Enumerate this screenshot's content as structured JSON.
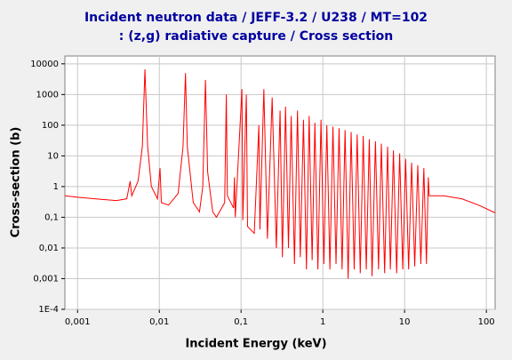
{
  "chart_data": {
    "type": "line",
    "title": "Incident neutron data / JEFF-3.2 / U238 / MT=102",
    "subtitle": ": (z,g) radiative capture / Cross section",
    "x_label": "Incident Energy (keV)",
    "y_label": "Cross-section (b)",
    "log_x": true,
    "log_y": true,
    "grid": true,
    "color": "#ff0000",
    "xlim": [
      0.0007,
      128
    ],
    "ylim": [
      0.0001,
      18000
    ],
    "xticks": [
      {
        "value": 0.001,
        "label": "0,001"
      },
      {
        "value": 0.01,
        "label": "0,01"
      },
      {
        "value": 0.1,
        "label": "0,1"
      },
      1,
      10,
      100
    ],
    "yticks": [
      {
        "value": 0.0001,
        "label": "1E-4"
      },
      {
        "value": 0.001,
        "label": "0,001"
      },
      {
        "value": 0.01,
        "label": "0,01"
      },
      {
        "value": 0.1,
        "label": "0,1"
      },
      1,
      10,
      100,
      1000,
      10000
    ],
    "x": [
      0.0007,
      0.001,
      0.002,
      0.003,
      0.004,
      0.0044,
      0.0046,
      0.0055,
      0.0062,
      0.00667,
      0.0072,
      0.008,
      0.0095,
      0.0102,
      0.0106,
      0.013,
      0.017,
      0.0195,
      0.0209,
      0.022,
      0.026,
      0.031,
      0.034,
      0.0367,
      0.039,
      0.045,
      0.05,
      0.063,
      0.066,
      0.068,
      0.081,
      0.083,
      0.085,
      0.1025,
      0.105,
      0.116,
      0.12,
      0.145,
      0.165,
      0.17,
      0.19,
      0.21,
      0.24,
      0.27,
      0.3,
      0.32,
      0.35,
      0.38,
      0.41,
      0.45,
      0.49,
      0.53,
      0.58,
      0.63,
      0.68,
      0.74,
      0.8,
      0.87,
      0.95,
      1.03,
      1.12,
      1.22,
      1.33,
      1.45,
      1.58,
      1.72,
      1.87,
      2.04,
      2.22,
      2.42,
      2.63,
      2.87,
      3.12,
      3.4,
      3.7,
      4.0,
      4.4,
      4.8,
      5.2,
      5.7,
      6.2,
      6.7,
      7.3,
      8.0,
      8.7,
      9.5,
      10.3,
      11.2,
      12.2,
      13.3,
      14.5,
      15.8,
      17.2,
      18.5,
      19.5,
      20,
      30,
      50,
      80,
      128
    ],
    "values": [
      0.5,
      0.45,
      0.38,
      0.35,
      0.4,
      1.5,
      0.5,
      1.5,
      20,
      6600,
      20,
      1.0,
      0.4,
      4,
      0.3,
      0.25,
      0.6,
      20,
      5000,
      20,
      0.3,
      0.15,
      1,
      3000,
      3,
      0.15,
      0.1,
      0.3,
      1000,
      0.5,
      0.2,
      2,
      0.1,
      1500,
      0.08,
      1000,
      0.05,
      0.03,
      100,
      0.04,
      1500,
      0.02,
      800,
      0.01,
      300,
      0.005,
      400,
      0.01,
      200,
      0.003,
      300,
      0.005,
      150,
      0.002,
      200,
      0.004,
      120,
      0.002,
      150,
      0.003,
      100,
      0.002,
      90,
      0.003,
      80,
      0.002,
      70,
      0.001,
      60,
      0.002,
      50,
      0.0015,
      45,
      0.002,
      35,
      0.0012,
      30,
      0.002,
      25,
      0.0015,
      20,
      0.002,
      15,
      0.0015,
      12,
      0.002,
      8,
      0.002,
      6,
      0.0025,
      5,
      0.003,
      4,
      0.003,
      2,
      0.5,
      0.5,
      0.4,
      0.25,
      0.14
    ]
  }
}
